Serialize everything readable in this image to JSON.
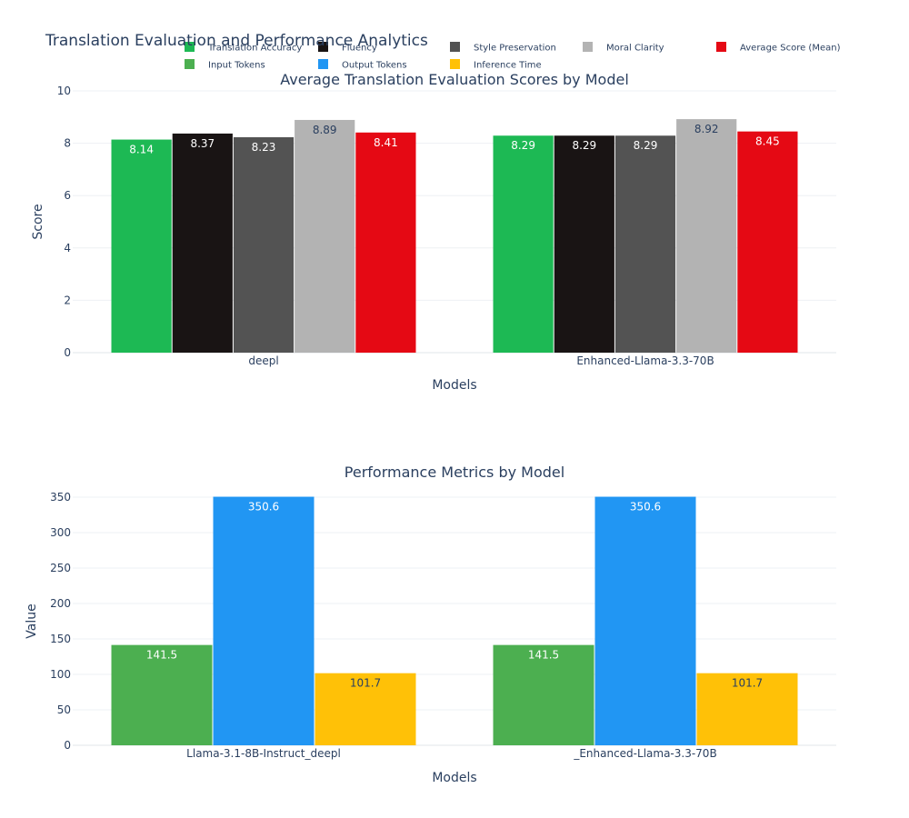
{
  "title": "Translation Evaluation and Performance Analytics",
  "legend": [
    {
      "name": "Translation Accuracy",
      "color": "#1db954"
    },
    {
      "name": "Fluency",
      "color": "#191414"
    },
    {
      "name": "Style Preservation",
      "color": "#535353"
    },
    {
      "name": "Moral Clarity",
      "color": "#b3b3b3"
    },
    {
      "name": "Average Score (Mean)",
      "color": "#e50914"
    },
    {
      "name": "Input Tokens",
      "color": "#4caf50"
    },
    {
      "name": "Output Tokens",
      "color": "#2196f3"
    },
    {
      "name": "Inference Time",
      "color": "#ffc107"
    }
  ],
  "chart_data": [
    {
      "type": "bar",
      "title": "Average Translation Evaluation Scores by Model",
      "xlabel": "Models",
      "ylabel": "Score",
      "ylim": [
        0,
        10
      ],
      "yticks": [
        "0",
        "2",
        "4",
        "6",
        "8",
        "10"
      ],
      "grid": true,
      "categories": [
        "deepl",
        "Enhanced-Llama-3.3-70B"
      ],
      "series": [
        {
          "name": "Translation Accuracy",
          "color": "#1db954",
          "values": [
            8.14,
            8.29
          ],
          "labels": [
            "8.14",
            "8.29"
          ]
        },
        {
          "name": "Fluency",
          "color": "#191414",
          "values": [
            8.37,
            8.29
          ],
          "labels": [
            "8.37",
            "8.29"
          ]
        },
        {
          "name": "Style Preservation",
          "color": "#535353",
          "values": [
            8.23,
            8.29
          ],
          "labels": [
            "8.23",
            "8.29"
          ]
        },
        {
          "name": "Moral Clarity",
          "color": "#b3b3b3",
          "values": [
            8.89,
            8.92
          ],
          "labels": [
            "8.89",
            "8.92"
          ]
        },
        {
          "name": "Average Score (Mean)",
          "color": "#e50914",
          "values": [
            8.41,
            8.45
          ],
          "labels": [
            "8.41",
            "8.45"
          ]
        }
      ]
    },
    {
      "type": "bar",
      "title": "Performance Metrics by Model",
      "xlabel": "Models",
      "ylabel": "Value",
      "ylim": [
        0,
        350
      ],
      "yticks": [
        "0",
        "50",
        "100",
        "150",
        "200",
        "250",
        "300",
        "350"
      ],
      "grid": true,
      "categories": [
        "Llama-3.1-8B-Instruct_deepl",
        "_Enhanced-Llama-3.3-70B"
      ],
      "series": [
        {
          "name": "Input Tokens",
          "color": "#4caf50",
          "values": [
            141.5,
            141.5
          ],
          "labels": [
            "141.5",
            "141.5"
          ]
        },
        {
          "name": "Output Tokens",
          "color": "#2196f3",
          "values": [
            350.6,
            350.6
          ],
          "labels": [
            "350.6",
            "350.6"
          ]
        },
        {
          "name": "Inference Time",
          "color": "#ffc107",
          "values": [
            101.7,
            101.7
          ],
          "labels": [
            "101.7",
            "101.7"
          ]
        }
      ]
    }
  ]
}
